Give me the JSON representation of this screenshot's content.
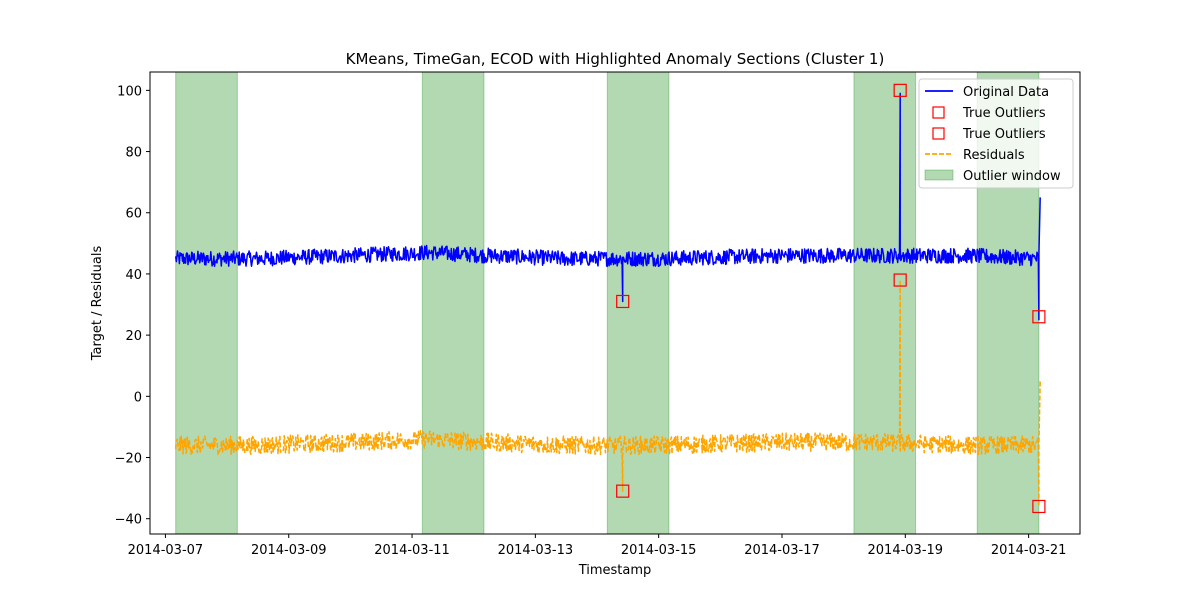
{
  "chart_data": {
    "type": "line",
    "title": "KMeans, TimeGan, ECOD with Highlighted Anomaly Sections (Cluster 1)",
    "xlabel": "Timestamp",
    "ylabel": "Target / Residuals",
    "x_range": [
      "2014-03-06T18:00",
      "2014-03-21T20:00"
    ],
    "ylim": [
      -45,
      106
    ],
    "x_ticks": [
      "2014-03-07",
      "2014-03-09",
      "2014-03-11",
      "2014-03-13",
      "2014-03-15",
      "2014-03-17",
      "2014-03-19",
      "2014-03-21"
    ],
    "y_ticks": [
      -40,
      -20,
      0,
      20,
      40,
      60,
      80,
      100
    ],
    "grid": false,
    "legend_position": "top-right",
    "outlier_windows": [
      {
        "start": "2014-03-07T04:00",
        "end": "2014-03-08T04:00"
      },
      {
        "start": "2014-03-11T04:00",
        "end": "2014-03-12T04:00"
      },
      {
        "start": "2014-03-14T04:00",
        "end": "2014-03-15T04:00"
      },
      {
        "start": "2014-03-18T04:00",
        "end": "2014-03-19T04:00"
      },
      {
        "start": "2014-03-20T04:00",
        "end": "2014-03-21T04:00"
      }
    ],
    "series": [
      {
        "name": "Original Data",
        "style": "solid",
        "color": "#0000ff",
        "start": "2014-03-07T04:00",
        "end": "2014-03-21T04:00",
        "baseline": [
          [
            "2014-03-07T04:00",
            45
          ],
          [
            "2014-03-08T12:00",
            45
          ],
          [
            "2014-03-10T00:00",
            46
          ],
          [
            "2014-03-11T06:00",
            47
          ],
          [
            "2014-03-12T06:00",
            46
          ],
          [
            "2014-03-13T12:00",
            45
          ],
          [
            "2014-03-15T00:00",
            45
          ],
          [
            "2014-03-17T00:00",
            46
          ],
          [
            "2014-03-18T12:00",
            46
          ],
          [
            "2014-03-20T00:00",
            46
          ],
          [
            "2014-03-21T04:00",
            45
          ]
        ],
        "noise_amplitude": 2.5,
        "spikes": [
          {
            "x": "2014-03-14T10:00",
            "y": 31
          },
          {
            "x": "2014-03-18T22:00",
            "y": 99
          },
          {
            "x": "2014-03-21T04:00",
            "y": 25
          },
          {
            "x": "2014-03-21T04:30",
            "y": 65
          }
        ]
      },
      {
        "name": "Residuals",
        "style": "dashed",
        "color": "#ffa500",
        "start": "2014-03-07T04:00",
        "end": "2014-03-21T04:00",
        "baseline": [
          [
            "2014-03-07T04:00",
            -16
          ],
          [
            "2014-03-08T12:00",
            -16
          ],
          [
            "2014-03-10T00:00",
            -15
          ],
          [
            "2014-03-11T06:00",
            -14
          ],
          [
            "2014-03-12T06:00",
            -15
          ],
          [
            "2014-03-13T12:00",
            -16
          ],
          [
            "2014-03-15T00:00",
            -16
          ],
          [
            "2014-03-17T00:00",
            -15
          ],
          [
            "2014-03-18T12:00",
            -15
          ],
          [
            "2014-03-20T00:00",
            -16
          ],
          [
            "2014-03-21T04:00",
            -16
          ]
        ],
        "noise_amplitude": 3,
        "spikes": [
          {
            "x": "2014-03-14T10:00",
            "y": -31
          },
          {
            "x": "2014-03-18T22:00",
            "y": 38
          },
          {
            "x": "2014-03-21T04:00",
            "y": -36
          },
          {
            "x": "2014-03-21T04:30",
            "y": 5
          }
        ]
      }
    ],
    "true_outliers": [
      {
        "name": " True Outliers",
        "color": "#ff0000",
        "points": [
          {
            "x": "2014-03-14T10:00",
            "y": 31
          },
          {
            "x": "2014-03-18T22:00",
            "y": 100
          },
          {
            "x": "2014-03-21T04:00",
            "y": 26
          }
        ]
      },
      {
        "name": " True Outliers",
        "color": "#ff0000",
        "points": [
          {
            "x": "2014-03-14T10:00",
            "y": -31
          },
          {
            "x": "2014-03-18T22:00",
            "y": 38
          },
          {
            "x": "2014-03-21T04:00",
            "y": -36
          }
        ]
      }
    ],
    "legend": [
      {
        "label": "Original Data",
        "kind": "line",
        "color": "#0000ff"
      },
      {
        "label": " True Outliers",
        "kind": "square",
        "color": "#ff0000"
      },
      {
        "label": " True Outliers",
        "kind": "square",
        "color": "#ff0000"
      },
      {
        "label": "Residuals",
        "kind": "dashed",
        "color": "#ffa500"
      },
      {
        "label": "Outlier window",
        "kind": "patch",
        "color": "#008000"
      }
    ]
  }
}
